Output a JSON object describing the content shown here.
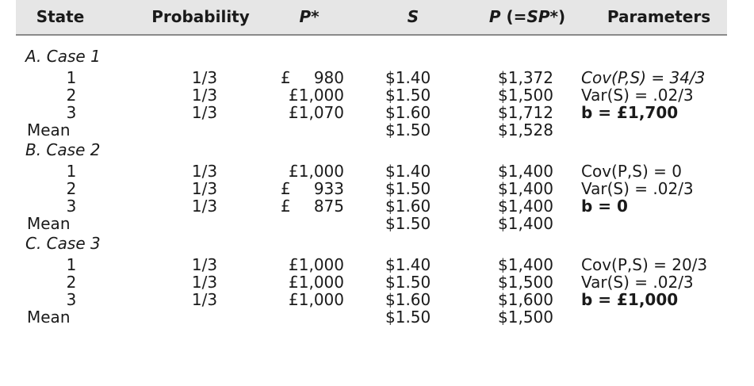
{
  "table": {
    "headers": {
      "state": "State",
      "probability": "Probability",
      "p_star": "P*",
      "s": "S",
      "p_prefix": "P",
      "p_formula": " (=",
      "p_formula_italic": "SP*",
      "p_formula_close": ")",
      "parameters": "Parameters"
    },
    "sections": [
      {
        "label": "A. Case 1",
        "rows": [
          {
            "state": "1",
            "probability": "1/3",
            "pound": "£",
            "p_star": "980",
            "s": "$1.40",
            "p": "$1,372",
            "param": "Cov(P,S) = 34/3"
          },
          {
            "state": "2",
            "probability": "1/3",
            "pound": "",
            "p_star": "£1,000",
            "s": "$1.50",
            "p": "$1,500",
            "param": "Var(S) = .02/3"
          },
          {
            "state": "3",
            "probability": "1/3",
            "pound": "",
            "p_star": "£1,070",
            "s": "$1.60",
            "p": "$1,712",
            "param": "b = £1,700"
          },
          {
            "state": "Mean",
            "probability": "",
            "pound": "",
            "p_star": "",
            "s": "$1.50",
            "p": "$1,528",
            "param": ""
          }
        ]
      },
      {
        "label": "B. Case 2",
        "rows": [
          {
            "state": "1",
            "probability": "1/3",
            "pound": "",
            "p_star": "£1,000",
            "s": "$1.40",
            "p": "$1,400",
            "param": "Cov(P,S) = 0"
          },
          {
            "state": "2",
            "probability": "1/3",
            "pound": "£",
            "p_star": "933",
            "s": "$1.50",
            "p": "$1,400",
            "param": "Var(S) = .02/3"
          },
          {
            "state": "3",
            "probability": "1/3",
            "pound": "£",
            "p_star": "875",
            "s": "$1.60",
            "p": "$1,400",
            "param": "b = 0"
          },
          {
            "state": "Mean",
            "probability": "",
            "pound": "",
            "p_star": "",
            "s": "$1.50",
            "p": "$1,400",
            "param": ""
          }
        ]
      },
      {
        "label": "C. Case 3",
        "rows": [
          {
            "state": "1",
            "probability": "1/3",
            "pound": "",
            "p_star": "£1,000",
            "s": "$1.40",
            "p": "$1,400",
            "param": "Cov(P,S) = 20/3"
          },
          {
            "state": "2",
            "probability": "1/3",
            "pound": "",
            "p_star": "£1,000",
            "s": "$1.50",
            "p": "$1,500",
            "param": "Var(S) = .02/3"
          },
          {
            "state": "3",
            "probability": "1/3",
            "pound": "",
            "p_star": "£1,000",
            "s": "$1.60",
            "p": "$1,600",
            "param": "b = £1,000"
          },
          {
            "state": "Mean",
            "probability": "",
            "pound": "",
            "p_star": "",
            "s": "$1.50",
            "p": "$1,500",
            "param": ""
          }
        ]
      }
    ]
  }
}
